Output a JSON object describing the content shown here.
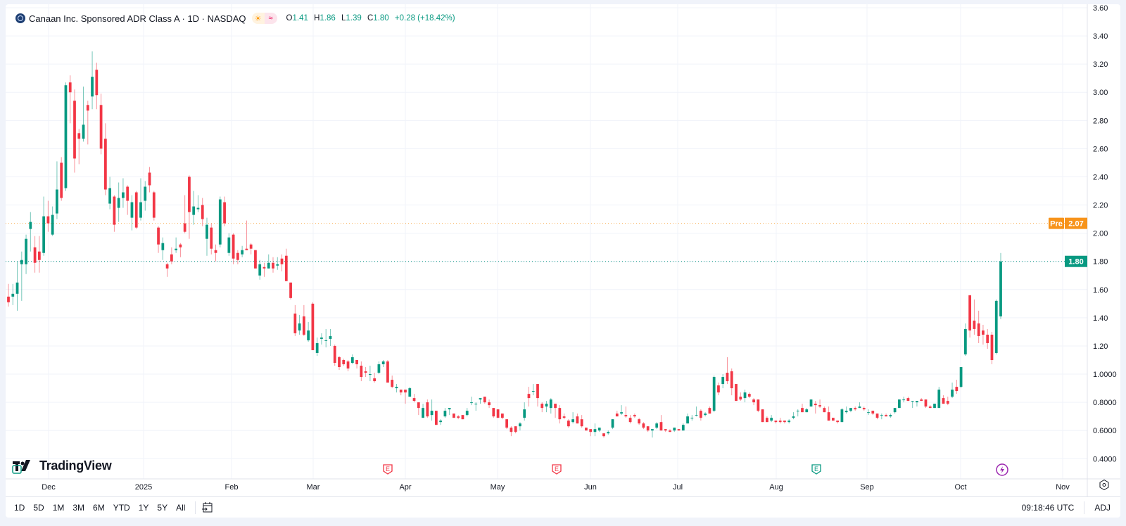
{
  "header": {
    "symbol_title": "Canaan Inc. Sponsored ADR Class A · 1D · NASDAQ",
    "open_label": "O",
    "open": "1.41",
    "high_label": "H",
    "high": "1.86",
    "low_label": "L",
    "low": "1.39",
    "close_label": "C",
    "close": "1.80",
    "change": "+0.28 (+18.42%)",
    "icons": [
      "sun-icon",
      "wave-icon"
    ]
  },
  "price_labels": {
    "pre_tag": "Pre",
    "pre_price": "2.07",
    "last_price": "1.80"
  },
  "colors": {
    "up": "#089981",
    "down": "#F23645",
    "pre": "#F7931A",
    "earnings_past": "#F23645",
    "earnings_future": "#089981",
    "event": "#9C27B0"
  },
  "chart_data": {
    "type": "candlestick",
    "interval": "1D",
    "ylim": [
      0.4,
      3.6
    ],
    "grid": true,
    "y_ticks": [
      "3.60",
      "3.40",
      "3.20",
      "3.00",
      "2.80",
      "2.60",
      "2.40",
      "2.20",
      "2.00",
      "1.80",
      "1.60",
      "1.40",
      "1.20",
      "1.0000",
      "0.8000",
      "0.6000",
      "0.4000"
    ],
    "y_tick_values": [
      3.6,
      3.4,
      3.2,
      3.0,
      2.8,
      2.6,
      2.4,
      2.2,
      2.0,
      1.8,
      1.6,
      1.4,
      1.2,
      1.0,
      0.8,
      0.6,
      0.4
    ],
    "x_ticks": [
      "Dec",
      "2025",
      "Feb",
      "Mar",
      "Apr",
      "May",
      "Jun",
      "Jul",
      "Aug",
      "Sep",
      "Oct",
      "Nov"
    ],
    "last_price": 1.8,
    "pre_market_price": 2.07,
    "candle_fields": [
      "open",
      "high",
      "low",
      "close"
    ],
    "candles": [
      [
        1.55,
        1.64,
        1.48,
        1.51
      ],
      [
        1.55,
        1.64,
        1.49,
        1.57
      ],
      [
        1.57,
        1.8,
        1.45,
        1.65
      ],
      [
        1.78,
        1.87,
        1.52,
        1.81
      ],
      [
        1.78,
        1.99,
        1.71,
        1.96
      ],
      [
        2.03,
        2.15,
        1.87,
        2.08
      ],
      [
        1.9,
        1.98,
        1.72,
        1.79
      ],
      [
        1.87,
        1.98,
        1.72,
        1.81
      ],
      [
        1.86,
        2.26,
        1.84,
        2.12
      ],
      [
        2.12,
        2.23,
        2.01,
        2.07
      ],
      [
        1.99,
        2.19,
        1.98,
        2.13
      ],
      [
        2.14,
        2.51,
        2.1,
        2.31
      ],
      [
        2.5,
        2.54,
        2.23,
        2.25
      ],
      [
        2.32,
        3.07,
        2.3,
        3.05
      ],
      [
        3.07,
        3.12,
        2.78,
        3.0
      ],
      [
        2.94,
        3.02,
        2.43,
        2.53
      ],
      [
        2.71,
        2.74,
        2.49,
        2.67
      ],
      [
        2.67,
        3.04,
        2.65,
        2.77
      ],
      [
        2.91,
        2.94,
        2.63,
        2.87
      ],
      [
        2.97,
        3.29,
        2.88,
        3.11
      ],
      [
        3.16,
        3.21,
        2.88,
        2.98
      ],
      [
        2.91,
        2.99,
        2.56,
        2.6
      ],
      [
        2.67,
        2.78,
        2.27,
        2.31
      ],
      [
        2.21,
        2.4,
        2.17,
        2.32
      ],
      [
        2.26,
        2.27,
        2.01,
        2.06
      ],
      [
        2.18,
        2.36,
        2.08,
        2.25
      ],
      [
        2.25,
        2.39,
        2.18,
        2.29
      ],
      [
        2.33,
        2.34,
        2.13,
        2.23
      ],
      [
        2.11,
        2.27,
        2.02,
        2.22
      ],
      [
        2.29,
        2.3,
        2.03,
        2.04
      ],
      [
        2.11,
        2.39,
        2.09,
        2.22
      ],
      [
        2.23,
        2.37,
        2.16,
        2.33
      ],
      [
        2.43,
        2.47,
        2.29,
        2.34
      ],
      [
        2.29,
        2.3,
        2.09,
        2.11
      ],
      [
        2.04,
        2.05,
        1.86,
        1.92
      ],
      [
        1.88,
        1.97,
        1.81,
        1.93
      ],
      [
        1.78,
        1.79,
        1.69,
        1.75
      ],
      [
        1.85,
        1.9,
        1.78,
        1.8
      ],
      [
        1.88,
        1.97,
        1.86,
        1.89
      ],
      [
        1.92,
        1.93,
        1.83,
        1.9
      ],
      [
        2.07,
        2.27,
        2.0,
        2.01
      ],
      [
        2.4,
        2.41,
        1.96,
        2.15
      ],
      [
        2.13,
        2.3,
        2.06,
        2.19
      ],
      [
        2.17,
        2.27,
        2.15,
        2.18
      ],
      [
        2.2,
        2.25,
        2.05,
        2.1
      ],
      [
        1.96,
        2.11,
        1.84,
        2.06
      ],
      [
        2.04,
        2.07,
        1.85,
        1.89
      ],
      [
        1.88,
        1.92,
        1.8,
        1.86
      ],
      [
        1.92,
        2.26,
        1.9,
        2.24
      ],
      [
        2.22,
        2.26,
        2.05,
        2.07
      ],
      [
        1.86,
        2.0,
        1.84,
        1.97
      ],
      [
        1.99,
        2.0,
        1.78,
        1.82
      ],
      [
        1.86,
        1.88,
        1.78,
        1.81
      ],
      [
        1.85,
        1.91,
        1.83,
        1.88
      ],
      [
        1.89,
        2.09,
        1.88,
        1.88
      ],
      [
        1.92,
        1.93,
        1.85,
        1.89
      ],
      [
        1.88,
        1.88,
        1.75,
        1.75
      ],
      [
        1.7,
        1.81,
        1.67,
        1.78
      ],
      [
        1.76,
        1.79,
        1.69,
        1.75
      ],
      [
        1.75,
        1.85,
        1.75,
        1.79
      ],
      [
        1.79,
        1.83,
        1.72,
        1.75
      ],
      [
        1.77,
        1.83,
        1.74,
        1.78
      ],
      [
        1.82,
        1.85,
        1.73,
        1.78
      ],
      [
        1.84,
        1.89,
        1.66,
        1.66
      ],
      [
        1.65,
        1.65,
        1.53,
        1.54
      ],
      [
        1.43,
        1.49,
        1.27,
        1.29
      ],
      [
        1.31,
        1.42,
        1.28,
        1.36
      ],
      [
        1.41,
        1.49,
        1.27,
        1.28
      ],
      [
        1.24,
        1.37,
        1.23,
        1.31
      ],
      [
        1.5,
        1.51,
        1.17,
        1.17
      ],
      [
        1.15,
        1.26,
        1.13,
        1.22
      ],
      [
        1.25,
        1.29,
        1.21,
        1.26
      ],
      [
        1.24,
        1.32,
        1.19,
        1.24
      ],
      [
        1.25,
        1.32,
        1.2,
        1.27
      ],
      [
        1.2,
        1.21,
        1.06,
        1.08
      ],
      [
        1.12,
        1.13,
        1.03,
        1.05
      ],
      [
        1.1,
        1.11,
        1.06,
        1.07
      ],
      [
        1.09,
        1.1,
        1.02,
        1.04
      ],
      [
        1.08,
        1.14,
        1.07,
        1.12
      ],
      [
        1.1,
        1.1,
        1.04,
        1.07
      ],
      [
        1.06,
        1.09,
        0.95,
        0.98
      ],
      [
        1.02,
        1.05,
        0.98,
        1.01
      ],
      [
        1.0,
        1.06,
        0.95,
        1.0
      ],
      [
        0.97,
        1.01,
        0.94,
        0.95
      ],
      [
        1.01,
        1.09,
        1.0,
        1.07
      ],
      [
        1.07,
        1.1,
        1.05,
        1.09
      ],
      [
        1.09,
        1.1,
        0.94,
        0.94
      ],
      [
        0.96,
        0.99,
        0.9,
        0.91
      ],
      [
        0.9,
        0.93,
        0.87,
        0.91
      ],
      [
        0.89,
        0.89,
        0.85,
        0.87
      ],
      [
        0.89,
        0.89,
        0.79,
        0.87
      ],
      [
        0.84,
        0.91,
        0.84,
        0.9
      ],
      [
        0.83,
        0.86,
        0.8,
        0.81
      ],
      [
        0.8,
        0.8,
        0.71,
        0.76
      ],
      [
        0.69,
        0.79,
        0.69,
        0.76
      ],
      [
        0.8,
        0.82,
        0.69,
        0.7
      ],
      [
        0.71,
        0.82,
        0.67,
        0.74
      ],
      [
        0.74,
        0.74,
        0.64,
        0.64
      ],
      [
        0.66,
        0.68,
        0.64,
        0.67
      ],
      [
        0.7,
        0.76,
        0.69,
        0.74
      ],
      [
        0.75,
        0.76,
        0.71,
        0.76
      ],
      [
        0.72,
        0.72,
        0.69,
        0.69
      ],
      [
        0.7,
        0.71,
        0.68,
        0.69
      ],
      [
        0.71,
        0.71,
        0.68,
        0.68
      ],
      [
        0.71,
        0.76,
        0.7,
        0.74
      ],
      [
        0.8,
        0.84,
        0.78,
        0.8
      ],
      [
        0.79,
        0.8,
        0.74,
        0.79
      ],
      [
        0.82,
        0.83,
        0.79,
        0.83
      ],
      [
        0.84,
        0.84,
        0.79,
        0.8
      ],
      [
        0.8,
        0.82,
        0.76,
        0.78
      ],
      [
        0.76,
        0.76,
        0.69,
        0.7
      ],
      [
        0.75,
        0.75,
        0.69,
        0.69
      ],
      [
        0.72,
        0.72,
        0.68,
        0.69
      ],
      [
        0.68,
        0.68,
        0.61,
        0.62
      ],
      [
        0.62,
        0.63,
        0.56,
        0.59
      ],
      [
        0.63,
        0.63,
        0.58,
        0.59
      ],
      [
        0.63,
        0.66,
        0.6,
        0.65
      ],
      [
        0.69,
        0.8,
        0.67,
        0.75
      ],
      [
        0.86,
        0.91,
        0.77,
        0.83
      ],
      [
        0.88,
        0.93,
        0.85,
        0.88
      ],
      [
        0.93,
        0.93,
        0.77,
        0.83
      ],
      [
        0.79,
        0.8,
        0.73,
        0.76
      ],
      [
        0.77,
        0.81,
        0.73,
        0.79
      ],
      [
        0.76,
        0.83,
        0.72,
        0.82
      ],
      [
        0.79,
        0.79,
        0.69,
        0.76
      ],
      [
        0.76,
        0.78,
        0.65,
        0.68
      ],
      [
        0.7,
        0.72,
        0.68,
        0.69
      ],
      [
        0.67,
        0.68,
        0.62,
        0.63
      ],
      [
        0.66,
        0.73,
        0.65,
        0.68
      ],
      [
        0.7,
        0.72,
        0.65,
        0.65
      ],
      [
        0.68,
        0.71,
        0.62,
        0.63
      ],
      [
        0.62,
        0.62,
        0.6,
        0.6
      ],
      [
        0.61,
        0.61,
        0.56,
        0.59
      ],
      [
        0.59,
        0.65,
        0.56,
        0.61
      ],
      [
        0.6,
        0.62,
        0.59,
        0.62
      ],
      [
        0.58,
        0.58,
        0.55,
        0.56
      ],
      [
        0.58,
        0.6,
        0.57,
        0.59
      ],
      [
        0.62,
        0.68,
        0.61,
        0.68
      ],
      [
        0.72,
        0.74,
        0.7,
        0.7
      ],
      [
        0.72,
        0.78,
        0.71,
        0.73
      ],
      [
        0.71,
        0.77,
        0.69,
        0.7
      ],
      [
        0.69,
        0.71,
        0.65,
        0.66
      ],
      [
        0.71,
        0.72,
        0.69,
        0.7
      ],
      [
        0.68,
        0.69,
        0.64,
        0.65
      ],
      [
        0.65,
        0.66,
        0.61,
        0.62
      ],
      [
        0.63,
        0.63,
        0.59,
        0.6
      ],
      [
        0.6,
        0.61,
        0.55,
        0.61
      ],
      [
        0.62,
        0.66,
        0.61,
        0.65
      ],
      [
        0.66,
        0.71,
        0.6,
        0.6
      ],
      [
        0.61,
        0.61,
        0.59,
        0.6
      ],
      [
        0.6,
        0.61,
        0.59,
        0.59
      ],
      [
        0.6,
        0.62,
        0.59,
        0.62
      ],
      [
        0.61,
        0.61,
        0.6,
        0.6
      ],
      [
        0.6,
        0.65,
        0.6,
        0.64
      ],
      [
        0.65,
        0.72,
        0.65,
        0.7
      ],
      [
        0.69,
        0.71,
        0.67,
        0.69
      ],
      [
        0.71,
        0.77,
        0.7,
        0.71
      ],
      [
        0.74,
        0.75,
        0.67,
        0.69
      ],
      [
        0.71,
        0.73,
        0.7,
        0.72
      ],
      [
        0.76,
        0.77,
        0.72,
        0.72
      ],
      [
        0.74,
        0.99,
        0.73,
        0.98
      ],
      [
        0.92,
        0.94,
        0.85,
        0.87
      ],
      [
        0.93,
        1.0,
        0.9,
        0.98
      ],
      [
        1.01,
        1.12,
        0.93,
        0.95
      ],
      [
        1.02,
        1.04,
        0.85,
        0.9
      ],
      [
        0.93,
        0.93,
        0.81,
        0.81
      ],
      [
        0.84,
        0.87,
        0.81,
        0.82
      ],
      [
        0.83,
        0.89,
        0.8,
        0.87
      ],
      [
        0.86,
        0.87,
        0.83,
        0.84
      ],
      [
        0.82,
        0.83,
        0.78,
        0.8
      ],
      [
        0.82,
        0.82,
        0.73,
        0.74
      ],
      [
        0.75,
        0.75,
        0.66,
        0.66
      ],
      [
        0.69,
        0.7,
        0.66,
        0.66
      ],
      [
        0.67,
        0.71,
        0.66,
        0.69
      ],
      [
        0.67,
        0.67,
        0.65,
        0.66
      ],
      [
        0.67,
        0.69,
        0.65,
        0.66
      ],
      [
        0.67,
        0.67,
        0.65,
        0.66
      ],
      [
        0.66,
        0.68,
        0.65,
        0.67
      ],
      [
        0.69,
        0.73,
        0.68,
        0.7
      ],
      [
        0.74,
        0.75,
        0.7,
        0.74
      ],
      [
        0.76,
        0.79,
        0.73,
        0.73
      ],
      [
        0.73,
        0.76,
        0.73,
        0.75
      ],
      [
        0.77,
        0.82,
        0.77,
        0.82
      ],
      [
        0.79,
        0.81,
        0.72,
        0.78
      ],
      [
        0.78,
        0.82,
        0.76,
        0.77
      ],
      [
        0.76,
        0.77,
        0.73,
        0.73
      ],
      [
        0.73,
        0.77,
        0.67,
        0.67
      ],
      [
        0.69,
        0.69,
        0.67,
        0.67
      ],
      [
        0.67,
        0.67,
        0.65,
        0.66
      ],
      [
        0.66,
        0.76,
        0.66,
        0.75
      ],
      [
        0.73,
        0.77,
        0.72,
        0.74
      ],
      [
        0.74,
        0.76,
        0.73,
        0.76
      ],
      [
        0.76,
        0.77,
        0.74,
        0.75
      ],
      [
        0.76,
        0.8,
        0.76,
        0.77
      ],
      [
        0.76,
        0.77,
        0.74,
        0.75
      ],
      [
        0.73,
        0.75,
        0.71,
        0.73
      ],
      [
        0.74,
        0.74,
        0.71,
        0.72
      ],
      [
        0.72,
        0.72,
        0.68,
        0.69
      ],
      [
        0.71,
        0.72,
        0.68,
        0.71
      ],
      [
        0.71,
        0.72,
        0.7,
        0.7
      ],
      [
        0.7,
        0.72,
        0.69,
        0.71
      ],
      [
        0.73,
        0.76,
        0.72,
        0.76
      ],
      [
        0.76,
        0.82,
        0.76,
        0.82
      ],
      [
        0.82,
        0.84,
        0.8,
        0.82
      ],
      [
        0.83,
        0.84,
        0.81,
        0.81
      ],
      [
        0.81,
        0.81,
        0.76,
        0.81
      ],
      [
        0.8,
        0.81,
        0.77,
        0.81
      ],
      [
        0.82,
        0.83,
        0.81,
        0.81
      ],
      [
        0.82,
        0.82,
        0.76,
        0.77
      ],
      [
        0.77,
        0.78,
        0.76,
        0.76
      ],
      [
        0.76,
        0.79,
        0.76,
        0.79
      ],
      [
        0.76,
        0.91,
        0.76,
        0.89
      ],
      [
        0.83,
        0.85,
        0.79,
        0.79
      ],
      [
        0.81,
        0.84,
        0.78,
        0.79
      ],
      [
        0.84,
        0.94,
        0.83,
        0.89
      ],
      [
        0.91,
        0.96,
        0.86,
        0.88
      ],
      [
        0.91,
        1.05,
        0.9,
        1.05
      ],
      [
        1.14,
        1.36,
        1.13,
        1.32
      ],
      [
        1.56,
        1.56,
        1.26,
        1.31
      ],
      [
        1.38,
        1.53,
        1.28,
        1.32
      ],
      [
        1.36,
        1.45,
        1.22,
        1.27
      ],
      [
        1.31,
        1.35,
        1.21,
        1.28
      ],
      [
        1.28,
        1.32,
        1.18,
        1.22
      ],
      [
        1.28,
        1.3,
        1.07,
        1.1
      ],
      [
        1.15,
        1.53,
        1.14,
        1.52
      ],
      [
        1.41,
        1.86,
        1.39,
        1.8
      ]
    ],
    "events": [
      {
        "type": "earnings",
        "label": "E",
        "status": "past"
      },
      {
        "type": "earnings",
        "label": "E",
        "status": "past"
      },
      {
        "type": "earnings",
        "label": "E",
        "status": "upcoming"
      },
      {
        "type": "event",
        "icon": "lightning-icon"
      }
    ]
  },
  "branding": {
    "logo_text": "TradingView"
  },
  "toolbar": {
    "ranges": [
      "1D",
      "5D",
      "1M",
      "3M",
      "6M",
      "YTD",
      "1Y",
      "5Y",
      "All"
    ],
    "time": "09:18:46 UTC",
    "adj": "ADJ"
  }
}
